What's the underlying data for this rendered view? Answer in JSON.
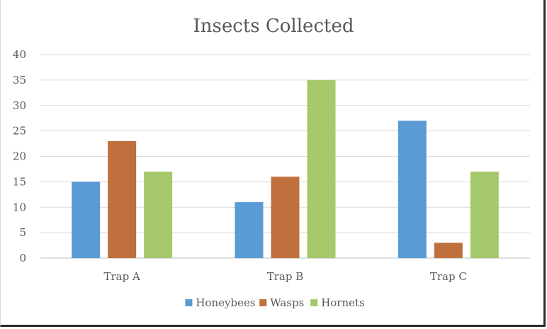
{
  "chart_data": {
    "type": "bar",
    "title": "Insects Collected",
    "categories": [
      "Trap A",
      "Trap B",
      "Trap C"
    ],
    "series": [
      {
        "name": "Honeybees",
        "color": "#5b9bd5",
        "values": [
          15,
          11,
          27
        ]
      },
      {
        "name": "Wasps",
        "color": "#c0703c",
        "values": [
          23,
          16,
          3
        ]
      },
      {
        "name": "Hornets",
        "color": "#a5c96a",
        "values": [
          17,
          35,
          17
        ]
      }
    ],
    "yticks": [
      "0",
      "5",
      "10",
      "15",
      "20",
      "25",
      "30",
      "35",
      "40"
    ],
    "ylim": [
      0,
      40
    ],
    "grid": true,
    "legend_position": "bottom"
  }
}
